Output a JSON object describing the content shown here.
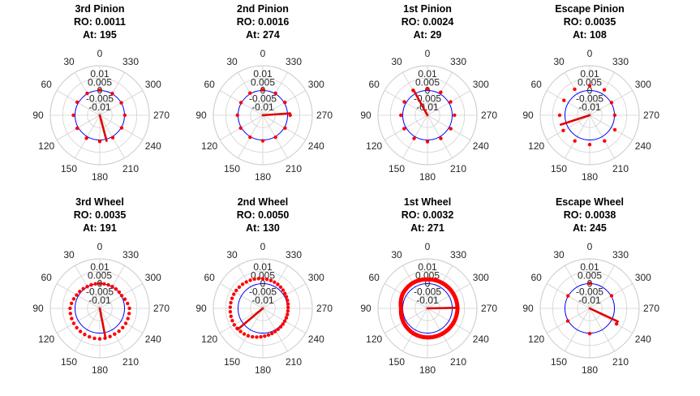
{
  "figure": {
    "background": "#ffffff"
  },
  "style": {
    "grid_color": "#d0d0d0",
    "nominal_circle_color": "#0000ff",
    "marker_color": "#ff0000",
    "runout_line_color": "#e00000",
    "text_color": "#262626"
  },
  "chart_data": [
    {
      "type": "polar-scatter",
      "title": [
        "3rd Pinion",
        "RO: 0.0011",
        "At: 195"
      ],
      "runout": 0.0011,
      "runout_angle": 195,
      "angle_ticks": [
        "0",
        "30",
        "60",
        "90",
        "120",
        "150",
        "180",
        "210",
        "240",
        "270",
        "300",
        "330"
      ],
      "radial_ticks": [
        "0.01",
        "0.005",
        "0",
        "-0.005",
        "-0.01"
      ],
      "rlim": [
        -0.015,
        0.015
      ],
      "points_r_by_angle": [
        0.0002,
        0.0003,
        0.0008,
        0.001,
        0.0008,
        0.0011,
        0.0009,
        0.0007,
        0.0003,
        0.0002,
        0.0001,
        0.0002
      ],
      "points_start_angle": 0,
      "points_step": 30
    },
    {
      "type": "polar-scatter",
      "title": [
        "2nd Pinion",
        "RO: 0.0016",
        "At: 274"
      ],
      "runout": 0.0016,
      "runout_angle": 274,
      "angle_ticks": [
        "0",
        "30",
        "60",
        "90",
        "120",
        "150",
        "180",
        "210",
        "240",
        "270",
        "300",
        "330"
      ],
      "radial_ticks": [
        "0.01",
        "0.005",
        "0",
        "-0.005",
        "-0.01"
      ],
      "rlim": [
        -0.015,
        0.015
      ],
      "points_r_by_angle": [
        0.0004,
        0.0005,
        0.0003,
        0.0004,
        0.0005,
        0.0004,
        0.0005,
        0.0004,
        0.0006,
        0.0016,
        0.0005,
        0.0004
      ],
      "points_start_angle": 0,
      "points_step": 30
    },
    {
      "type": "polar-scatter",
      "title": [
        "1st Pinion",
        "RO: 0.0024",
        "At:  29"
      ],
      "runout": 0.0024,
      "runout_angle": 29,
      "angle_ticks": [
        "0",
        "30",
        "60",
        "90",
        "120",
        "150",
        "180",
        "210",
        "240",
        "270",
        "300",
        "330"
      ],
      "radial_ticks": [
        "0.01",
        "0.005",
        "0",
        "-0.005",
        "-0.01"
      ],
      "rlim": [
        -0.015,
        0.015
      ],
      "points_r_by_angle": [
        0.001,
        0.0024,
        0.0012,
        0.0011,
        0.0013,
        0.0012,
        0.001,
        0.0012,
        0.0013,
        0.0014,
        0.0012,
        0.0011
      ],
      "points_start_angle": 0,
      "points_step": 30
    },
    {
      "type": "polar-scatter",
      "title": [
        "Escape Pinion",
        "RO: 0.0035",
        "At: 108"
      ],
      "runout": 0.0035,
      "runout_angle": 108,
      "angle_ticks": [
        "0",
        "30",
        "60",
        "90",
        "120",
        "150",
        "180",
        "210",
        "240",
        "270",
        "300",
        "330"
      ],
      "radial_ticks": [
        "0.01",
        "0.005",
        "0",
        "-0.005",
        "-0.01"
      ],
      "rlim": [
        -0.015,
        0.015
      ],
      "points_r_by_angle": [
        0.003,
        0.0032,
        0.003,
        0.0032,
        0.0035,
        0.003,
        0.0028,
        0.003,
        0.0026,
        0.0002,
        0.0003,
        0.0028
      ],
      "points_start_angle": 0,
      "points_step": 30
    },
    {
      "type": "polar-scatter",
      "title": [
        "3rd Wheel",
        "RO: 0.0035",
        "At: 191"
      ],
      "runout": 0.0035,
      "runout_angle": 191,
      "angle_ticks": [
        "0",
        "30",
        "60",
        "90",
        "120",
        "150",
        "180",
        "210",
        "240",
        "270",
        "300",
        "330"
      ],
      "radial_ticks": [
        "0.01",
        "0.005",
        "0",
        "-0.005",
        "-0.01"
      ],
      "rlim": [
        -0.015,
        0.015
      ],
      "points_r_by_angle": [
        0.0,
        0.0002,
        0.0012,
        0.003,
        0.0032,
        0.0033,
        0.0035,
        0.003,
        0.0032,
        0.003,
        0.0004,
        0.0002
      ],
      "points_start_angle": 0,
      "points_step": 10
    },
    {
      "type": "polar-scatter",
      "title": [
        "2nd Wheel",
        "RO: 0.0050",
        "At: 130"
      ],
      "runout": 0.005,
      "runout_angle": 130,
      "angle_ticks": [
        "0",
        "30",
        "60",
        "90",
        "120",
        "150",
        "180",
        "210",
        "240",
        "270",
        "300",
        "330"
      ],
      "radial_ticks": [
        "0.01",
        "0.005",
        "0",
        "-0.005",
        "-0.01"
      ],
      "rlim": [
        -0.015,
        0.015
      ],
      "points_r_by_angle": [
        0.003,
        0.0038,
        0.0045,
        0.0048,
        0.005,
        0.004,
        0.002,
        0.0008,
        0.0004,
        0.0003,
        0.001,
        0.0022
      ],
      "points_start_angle": 0,
      "points_step": 8
    },
    {
      "type": "polar-scatter",
      "title": [
        "1st Wheel",
        "RO: 0.0032",
        "At: 271"
      ],
      "runout": 0.0032,
      "runout_angle": 271,
      "angle_ticks": [
        "0",
        "30",
        "60",
        "90",
        "120",
        "150",
        "180",
        "210",
        "240",
        "270",
        "300",
        "330"
      ],
      "radial_ticks": [
        "0.01",
        "0.005",
        "0",
        "-0.005",
        "-0.01"
      ],
      "rlim": [
        -0.015,
        0.015
      ],
      "points_r_by_angle": [
        0.0026,
        0.0028,
        0.0024,
        0.001,
        0.0018,
        0.0024,
        0.0026,
        0.0028,
        0.003,
        0.0032,
        0.003,
        0.0028
      ],
      "points_start_angle": 0,
      "points_step": 3
    },
    {
      "type": "polar-scatter",
      "title": [
        "Escape Wheel",
        "RO: 0.0038",
        "At: 245"
      ],
      "runout": 0.0038,
      "runout_angle": 245,
      "angle_ticks": [
        "0",
        "30",
        "60",
        "90",
        "120",
        "150",
        "180",
        "210",
        "240",
        "270",
        "300",
        "330"
      ],
      "radial_ticks": [
        "0.01",
        "0.005",
        "0",
        "-0.005",
        "-0.01"
      ],
      "rlim": [
        -0.015,
        0.015
      ],
      "points_r_by_angle": [
        0.0002,
        0.0001,
        0.0002,
        0.0002,
        0.0003,
        0.0005,
        0.0003,
        0.001,
        0.0038,
        0.0012,
        0.0003,
        0.0002
      ],
      "points_start_angle": 0,
      "points_step": 60
    }
  ]
}
